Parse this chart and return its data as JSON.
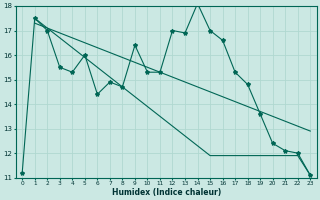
{
  "xlabel": "Humidex (Indice chaleur)",
  "background_color": "#cbe8e3",
  "grid_color": "#b0d8d0",
  "line_color": "#006655",
  "x_data": [
    0,
    1,
    2,
    3,
    4,
    5,
    6,
    7,
    8,
    9,
    10,
    11,
    12,
    13,
    14,
    15,
    16,
    17,
    18,
    19,
    20,
    21,
    22,
    23
  ],
  "y_main": [
    11.2,
    17.5,
    17.0,
    15.5,
    15.3,
    16.0,
    14.4,
    14.9,
    14.7,
    16.4,
    15.3,
    15.3,
    17.0,
    16.9,
    18.1,
    17.0,
    16.6,
    15.3,
    14.8,
    13.6,
    12.4,
    12.1,
    12.0,
    11.1
  ],
  "y_upper": [
    17.5,
    17.3,
    17.1,
    16.9,
    16.7,
    16.5,
    16.3,
    16.1,
    15.9,
    15.7,
    15.5,
    15.3,
    15.1,
    14.9,
    14.7,
    14.5,
    14.3,
    14.1,
    13.9,
    13.7,
    13.5,
    13.3,
    13.1,
    12.9
  ],
  "y_lower": [
    11.2,
    17.5,
    17.1,
    16.7,
    16.3,
    15.9,
    15.5,
    15.1,
    14.7,
    14.3,
    13.9,
    13.5,
    13.1,
    12.7,
    12.3,
    11.9,
    11.9,
    11.9,
    11.9,
    11.9,
    11.9,
    11.9,
    11.9,
    11.1
  ],
  "ylim": [
    11,
    18
  ],
  "xlim": [
    -0.5,
    23.5
  ],
  "yticks": [
    11,
    12,
    13,
    14,
    15,
    16,
    17,
    18
  ],
  "xticks": [
    0,
    1,
    2,
    3,
    4,
    5,
    6,
    7,
    8,
    9,
    10,
    11,
    12,
    13,
    14,
    15,
    16,
    17,
    18,
    19,
    20,
    21,
    22,
    23
  ]
}
